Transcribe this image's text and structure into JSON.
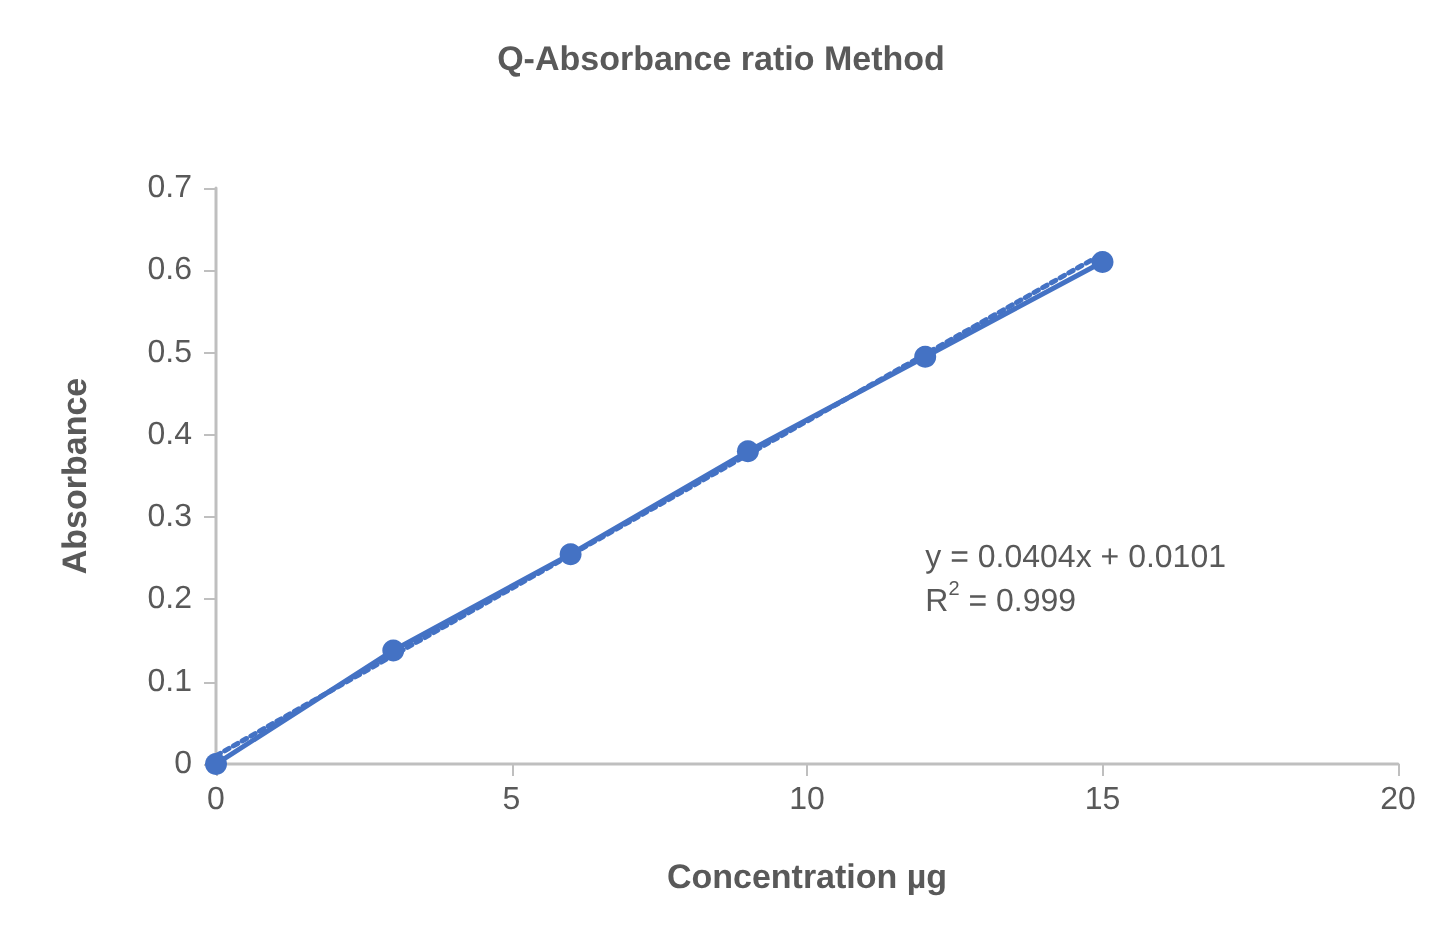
{
  "chart_data": {
    "type": "line",
    "title": "Q-Absorbance ratio Method",
    "xlabel": "Concentration µg",
    "ylabel": "Absorbance",
    "x": [
      0,
      3,
      6,
      9,
      12,
      15
    ],
    "series": [
      {
        "color": "#4472c4",
        "values": [
          0,
          0.138,
          0.255,
          0.38,
          0.495,
          0.61
        ],
        "marker": "circle",
        "line_style": "solid"
      },
      {
        "type": "line",
        "color": "#4472c4",
        "x": [
          0,
          15
        ],
        "values": [
          0.01,
          0.62
        ],
        "marker": "none",
        "line_style": "dotted"
      }
    ],
    "xlim": [
      0,
      20
    ],
    "xticks": [
      0,
      5,
      10,
      15,
      20
    ],
    "ylim": [
      0,
      0.7
    ],
    "yticks": [
      0,
      0.1,
      0.2,
      0.3,
      0.4,
      0.5,
      0.6,
      0.7
    ],
    "grid": false,
    "annotations": [
      "y = 0.0404x + 0.0101",
      "R$^{2}$ = 0.999"
    ]
  }
}
